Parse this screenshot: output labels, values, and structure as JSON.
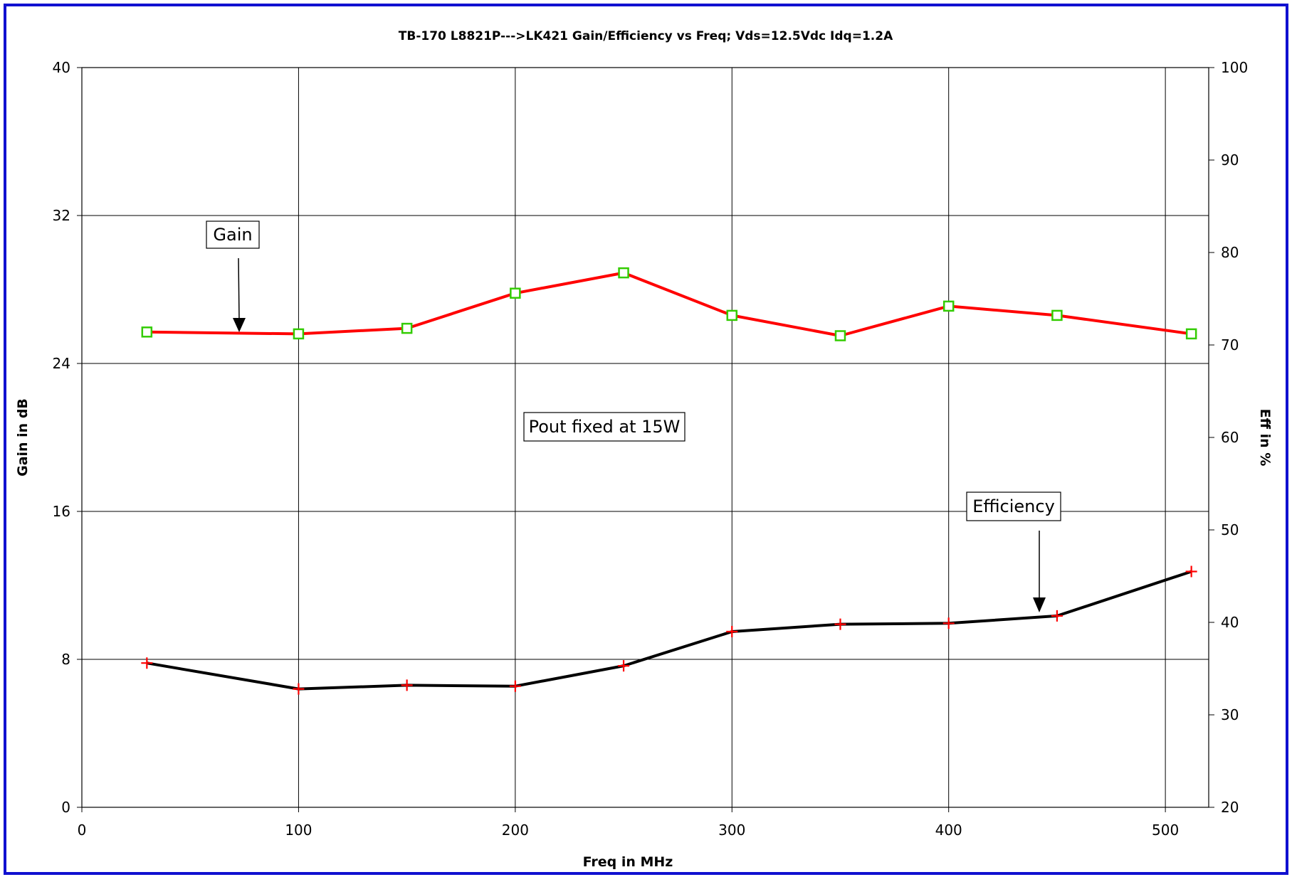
{
  "chart_data": {
    "type": "line",
    "title": "TB-170 L8821P--->LK421 Gain/Efficiency vs Freq; Vds=12.5Vdc Idq=1.2A",
    "xlabel": "Freq in MHz",
    "ylabel": "Gain in dB",
    "y2label": "Eff in %",
    "xlim": [
      0,
      520
    ],
    "ylim": [
      0,
      40
    ],
    "y2lim": [
      20,
      100
    ],
    "xticks": [
      "0",
      "100",
      "200",
      "300",
      "400",
      "500"
    ],
    "yticks": [
      "0",
      "8",
      "16",
      "24",
      "32",
      "40"
    ],
    "y2ticks": [
      "20",
      "30",
      "40",
      "50",
      "60",
      "70",
      "80",
      "90",
      "100"
    ],
    "grid": true,
    "x": [
      30,
      100,
      150,
      200,
      250,
      300,
      350,
      400,
      450,
      512
    ],
    "series": [
      {
        "name": "Gain",
        "axis": "left",
        "color": "#ff0000",
        "marker": "square",
        "marker_color": "#33cc00",
        "values": [
          25.7,
          25.6,
          25.9,
          27.8,
          28.9,
          26.6,
          25.5,
          27.1,
          26.6,
          25.6
        ]
      },
      {
        "name": "Efficiency",
        "axis": "right",
        "color": "#000000",
        "marker": "plus",
        "marker_color": "#ff0000",
        "values": [
          35.6,
          32.8,
          33.2,
          33.1,
          35.3,
          39.0,
          39.8,
          39.9,
          40.7,
          45.5
        ]
      }
    ],
    "annotations": {
      "gain_label": "Gain",
      "efficiency_label": "Efficiency",
      "pout_note": "Pout fixed at 15W"
    },
    "frame_color": "#1010d0"
  }
}
